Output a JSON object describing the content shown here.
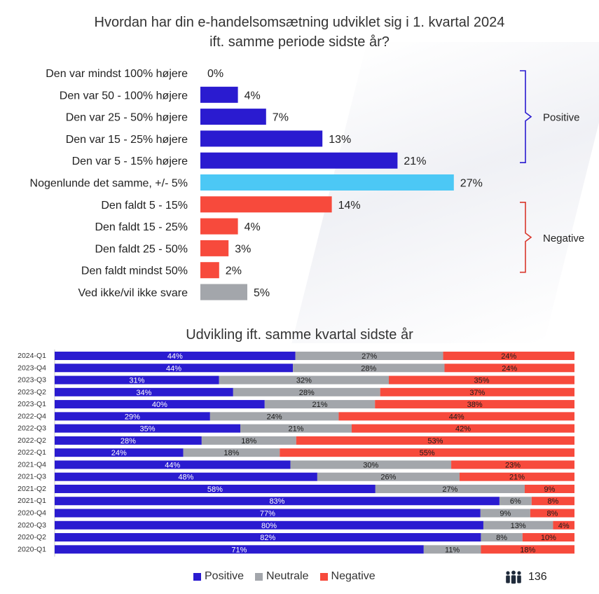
{
  "chart_data": [
    {
      "type": "bar",
      "orientation": "horizontal",
      "title": "Hvordan har din e-handelsomsætning udviklet sig i 1. kvartal 2024\nift. samme periode sidste år?",
      "categories": [
        "Den var mindst 100% højere",
        "Den var 50 - 100% højere",
        "Den var 25 - 50% højere",
        "Den var 15 - 25% højere",
        "Den var 5 - 15% højere",
        "Nogenlunde det samme, +/- 5%",
        "Den faldt 5 - 15%",
        "Den faldt 15 - 25%",
        "Den faldt 25 - 50%",
        "Den faldt mindst 50%",
        "Ved ikke/vil ikke svare"
      ],
      "values": [
        0,
        4,
        7,
        13,
        21,
        27,
        14,
        4,
        3,
        2,
        5
      ],
      "value_labels": [
        "0%",
        "4%",
        "7%",
        "13%",
        "21%",
        "27%",
        "14%",
        "4%",
        "3%",
        "2%",
        "5%"
      ],
      "colors": [
        "#2a1bd0",
        "#2a1bd0",
        "#2a1bd0",
        "#2a1bd0",
        "#2a1bd0",
        "#4cc8f5",
        "#f74a3c",
        "#f74a3c",
        "#f74a3c",
        "#f74a3c",
        "#a3a6ab"
      ],
      "groups": [
        {
          "label": "Positive",
          "from": 0,
          "to": 4,
          "color": "#2a1bd0"
        },
        {
          "label": "Negative",
          "from": 6,
          "to": 9,
          "color": "#d9372c"
        }
      ]
    },
    {
      "type": "bar",
      "orientation": "horizontal",
      "stacked": "100%",
      "title": "Udvikling ift. samme kvartal sidste år",
      "categories": [
        "2024-Q1",
        "2023-Q4",
        "2023-Q3",
        "2023-Q2",
        "2023-Q1",
        "2022-Q4",
        "2022-Q3",
        "2022-Q2",
        "2022-Q1",
        "2021-Q4",
        "2021-Q3",
        "2021-Q2",
        "2021-Q1",
        "2020-Q4",
        "2020-Q3",
        "2020-Q2",
        "2020-Q1"
      ],
      "series": [
        {
          "name": "Positive",
          "color": "#2a1bd0",
          "values": [
            44,
            44,
            31,
            34,
            40,
            29,
            35,
            28,
            24,
            44,
            48,
            58,
            83,
            77,
            80,
            82,
            71
          ]
        },
        {
          "name": "Neutrale",
          "color": "#a3a6ab",
          "values": [
            27,
            28,
            32,
            28,
            21,
            24,
            21,
            18,
            18,
            30,
            26,
            27,
            6,
            9,
            13,
            8,
            11
          ]
        },
        {
          "name": "Negative",
          "color": "#f74a3c",
          "values": [
            24,
            24,
            35,
            37,
            38,
            44,
            42,
            53,
            55,
            23,
            21,
            9,
            8,
            8,
            4,
            10,
            18
          ]
        }
      ],
      "legend_position": "bottom"
    }
  ],
  "respondents": {
    "icon": "people-icon",
    "count": "136"
  }
}
